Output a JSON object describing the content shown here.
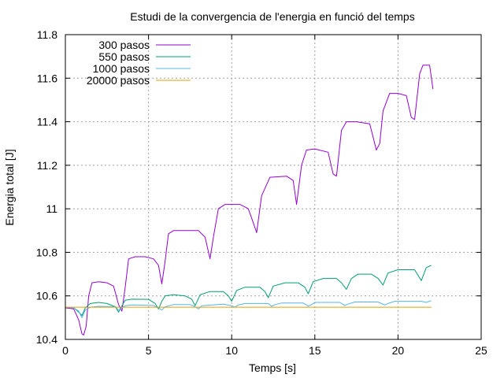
{
  "chart_data": {
    "type": "line",
    "title": "Estudi de la convergencia de l'energia en funció del temps",
    "xlabel": "Temps [s]",
    "ylabel": "Energia total [J]",
    "xlim": [
      0,
      25
    ],
    "ylim": [
      10.4,
      11.8
    ],
    "xticks": [
      0,
      5,
      10,
      15,
      20,
      25
    ],
    "yticks": [
      10.4,
      10.6,
      10.8,
      11,
      11.2,
      11.4,
      11.6,
      11.8
    ],
    "xtick_labels": [
      "0",
      "5",
      "10",
      "15",
      "20",
      "25"
    ],
    "ytick_labels": [
      "10.4",
      "10.6",
      "10.8",
      "11",
      "11.2",
      "11.4",
      "11.6",
      "11.8"
    ],
    "grid": true,
    "legend_position": "top-left",
    "series": [
      {
        "name": "300 pasos",
        "color": "#9400d3",
        "x": [
          0.0,
          0.5,
          0.8,
          1.0,
          1.1,
          1.25,
          1.4,
          1.6,
          2.0,
          2.5,
          2.9,
          3.2,
          3.4,
          3.6,
          3.8,
          4.2,
          4.8,
          5.3,
          5.6,
          5.8,
          6.0,
          6.2,
          6.5,
          7.0,
          8.0,
          8.4,
          8.7,
          8.9,
          9.2,
          9.6,
          10.5,
          11.0,
          11.3,
          11.5,
          11.8,
          12.3,
          13.3,
          13.7,
          13.9,
          14.2,
          14.5,
          15.0,
          15.8,
          16.1,
          16.3,
          16.6,
          16.9,
          17.5,
          18.3,
          18.7,
          18.9,
          19.1,
          19.5,
          20.0,
          20.5,
          20.8,
          21.0,
          21.3,
          21.5,
          21.9,
          22.1
        ],
        "y": [
          10.545,
          10.54,
          10.49,
          10.425,
          10.42,
          10.46,
          10.6,
          10.66,
          10.665,
          10.66,
          10.645,
          10.56,
          10.53,
          10.64,
          10.77,
          10.78,
          10.78,
          10.77,
          10.74,
          10.655,
          10.76,
          10.885,
          10.9,
          10.9,
          10.9,
          10.87,
          10.77,
          10.87,
          11.0,
          11.02,
          11.02,
          11.0,
          10.935,
          10.89,
          11.06,
          11.145,
          11.15,
          11.13,
          11.02,
          11.2,
          11.27,
          11.275,
          11.26,
          11.16,
          11.15,
          11.36,
          11.4,
          11.4,
          11.39,
          11.27,
          11.3,
          11.45,
          11.53,
          11.53,
          11.52,
          11.42,
          11.41,
          11.62,
          11.66,
          11.66,
          11.55
        ]
      },
      {
        "name": "550 pasos",
        "color": "#009e73",
        "x": [
          0.0,
          0.5,
          0.8,
          1.0,
          1.2,
          1.5,
          2.0,
          2.5,
          3.0,
          3.2,
          3.4,
          3.6,
          4.0,
          5.0,
          5.4,
          5.6,
          5.8,
          6.0,
          6.5,
          7.2,
          7.6,
          7.8,
          8.1,
          8.7,
          9.5,
          9.8,
          10.0,
          10.3,
          10.8,
          11.7,
          12.0,
          12.2,
          12.5,
          13.2,
          14.0,
          14.4,
          14.6,
          14.9,
          15.5,
          16.3,
          16.6,
          16.9,
          17.2,
          17.6,
          18.4,
          18.8,
          19.1,
          19.4,
          20.0,
          21.0,
          21.4,
          21.7,
          22.0
        ],
        "y": [
          10.548,
          10.546,
          10.525,
          10.51,
          10.545,
          10.565,
          10.57,
          10.565,
          10.55,
          10.525,
          10.555,
          10.58,
          10.585,
          10.584,
          10.565,
          10.54,
          10.575,
          10.6,
          10.605,
          10.6,
          10.585,
          10.555,
          10.605,
          10.62,
          10.62,
          10.6,
          10.575,
          10.625,
          10.64,
          10.64,
          10.62,
          10.592,
          10.645,
          10.66,
          10.66,
          10.64,
          10.61,
          10.665,
          10.68,
          10.68,
          10.66,
          10.63,
          10.68,
          10.7,
          10.7,
          10.68,
          10.65,
          10.705,
          10.72,
          10.72,
          10.67,
          10.73,
          10.74
        ]
      },
      {
        "name": "1000 pasos",
        "color": "#56b4e9",
        "x": [
          0.0,
          0.5,
          0.8,
          1.0,
          1.2,
          1.5,
          2.0,
          3.0,
          3.2,
          3.4,
          3.6,
          4.0,
          5.3,
          5.6,
          5.8,
          6.0,
          6.5,
          7.5,
          7.8,
          8.0,
          8.2,
          9.5,
          10.0,
          10.2,
          10.4,
          10.8,
          12.2,
          12.4,
          12.6,
          13.0,
          14.3,
          14.6,
          14.8,
          15.0,
          16.5,
          16.8,
          17.0,
          17.4,
          18.8,
          19.2,
          19.4,
          19.8,
          21.4,
          21.7,
          22.0
        ],
        "y": [
          10.547,
          10.545,
          10.53,
          10.5,
          10.535,
          10.548,
          10.552,
          10.55,
          10.535,
          10.545,
          10.555,
          10.558,
          10.556,
          10.545,
          10.535,
          10.55,
          10.56,
          10.56,
          10.55,
          10.54,
          10.555,
          10.562,
          10.555,
          10.548,
          10.558,
          10.565,
          10.565,
          10.552,
          10.56,
          10.567,
          10.567,
          10.553,
          10.56,
          10.57,
          10.57,
          10.556,
          10.562,
          10.572,
          10.572,
          10.558,
          10.565,
          10.575,
          10.575,
          10.57,
          10.578
        ]
      },
      {
        "name": "20000 pasos",
        "color": "#e69f00",
        "x": [
          0.0,
          5.0,
          10.0,
          15.0,
          20.0,
          22.0
        ],
        "y": [
          10.548,
          10.548,
          10.548,
          10.548,
          10.548,
          10.548
        ]
      }
    ]
  }
}
